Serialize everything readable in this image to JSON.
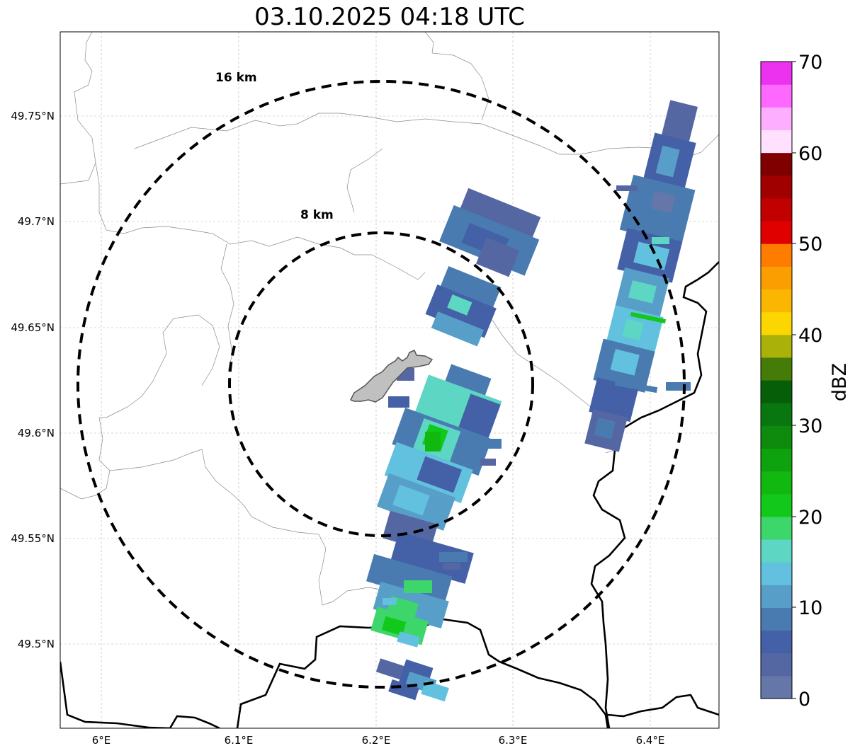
{
  "title": "03.10.2025 04:18 UTC",
  "axes": {
    "lon_ticks": [
      "6°E",
      "6.1°E",
      "6.2°E",
      "6.3°E",
      "6.4°E"
    ],
    "lat_ticks": [
      "49.75°N",
      "49.7°N",
      "49.65°N",
      "49.6°N",
      "49.55°N",
      "49.5°N"
    ],
    "grid": true
  },
  "range_rings": [
    {
      "label": "16 km",
      "radius_km": 16
    },
    {
      "label": "8 km",
      "radius_km": 8
    }
  ],
  "colorbar": {
    "title": "dBZ",
    "tick_labels": [
      "0",
      "10",
      "20",
      "30",
      "40",
      "50",
      "60",
      "70"
    ],
    "colors": [
      "#6477a8",
      "#5567a3",
      "#4460a6",
      "#4a7bb0",
      "#579fc8",
      "#62c1de",
      "#5dd6c3",
      "#3cd66a",
      "#12c81a",
      "#10b80f",
      "#0fa20f",
      "#0e8a0c",
      "#097710",
      "#075e09",
      "#457b07",
      "#aab209",
      "#fcd600",
      "#fbb601",
      "#fb9e01",
      "#fe7c00",
      "#e10000",
      "#c10000",
      "#a10000",
      "#800000",
      "#ffe0fe",
      "#feaefe",
      "#fd69fe",
      "#ec31ef"
    ]
  }
}
